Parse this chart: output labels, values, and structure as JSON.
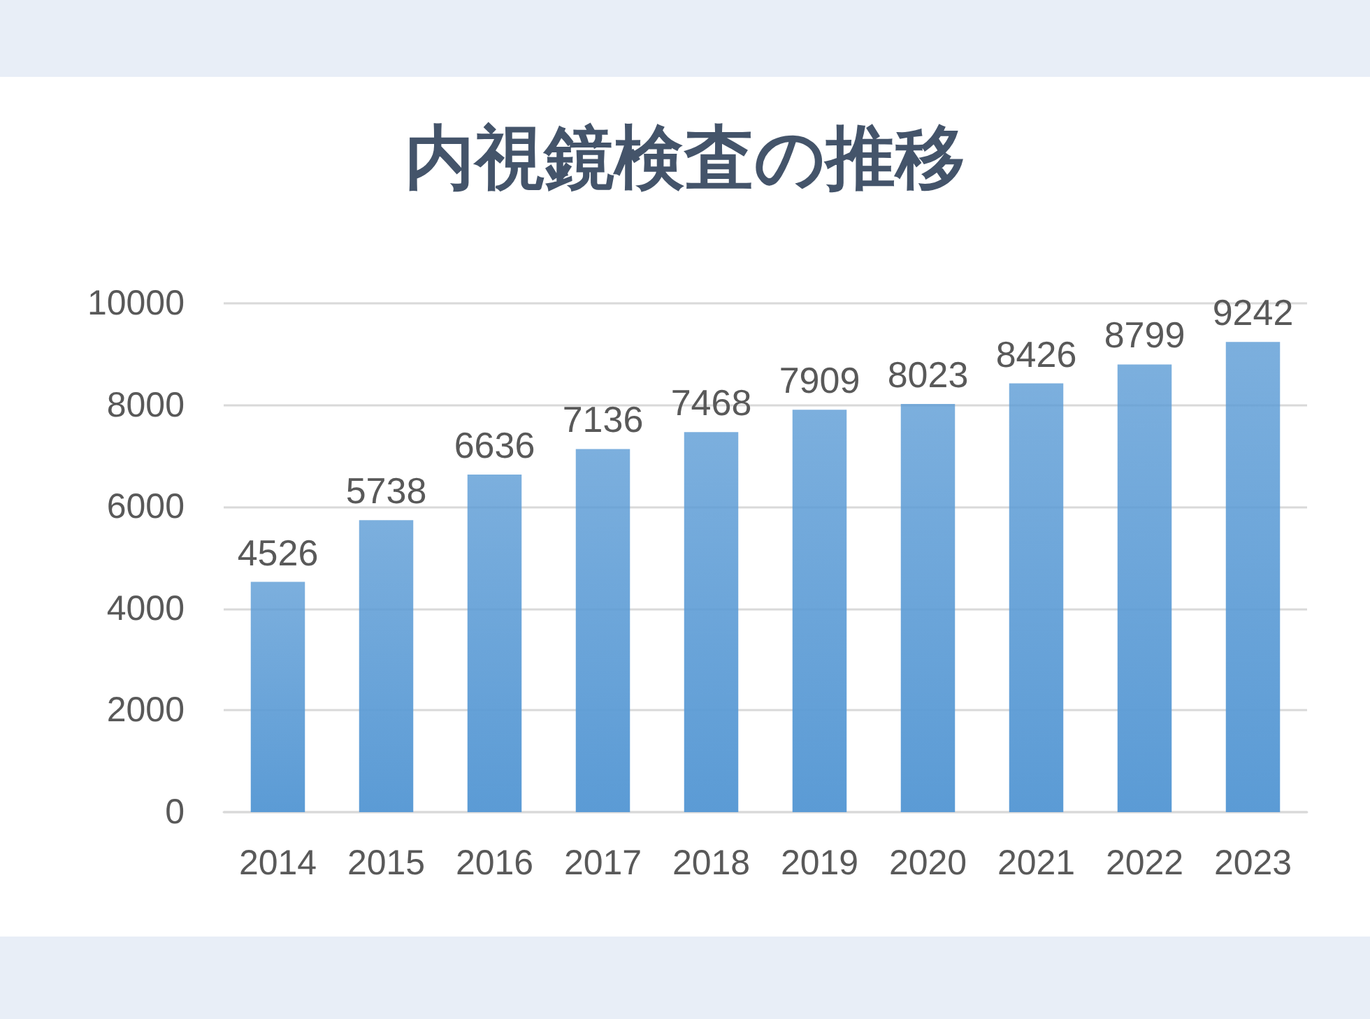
{
  "chart_data": {
    "type": "bar",
    "title": "内視鏡検査の推移",
    "categories": [
      "2014",
      "2015",
      "2016",
      "2017",
      "2018",
      "2019",
      "2020",
      "2021",
      "2022",
      "2023"
    ],
    "values": [
      4526,
      5738,
      6636,
      7136,
      7468,
      7909,
      8023,
      8426,
      8799,
      9242
    ],
    "color": "#5b9bd5",
    "ylim": [
      0,
      10000
    ],
    "yticks": [
      0,
      2000,
      4000,
      6000,
      8000,
      10000
    ],
    "grid": "y",
    "data_labels": true
  }
}
